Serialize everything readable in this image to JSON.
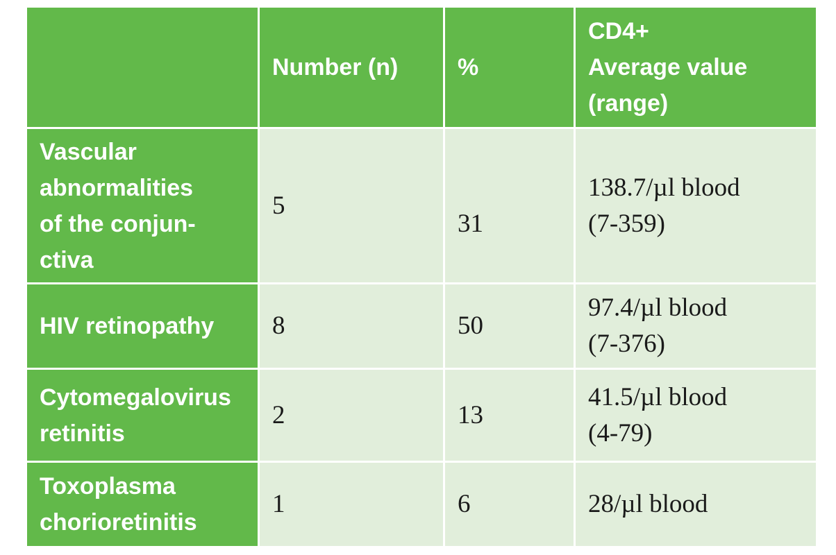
{
  "table": {
    "headers": [
      "",
      "Number (n)",
      "%",
      [
        "CD4+",
        "Average value",
        "(range)"
      ]
    ],
    "rows": [
      {
        "label": [
          "Vascular",
          "abnormalities",
          "of the conjun-",
          "ctiva"
        ],
        "number": "5",
        "percent": "31",
        "cd4": [
          "138.7/µl blood",
          "(7-359)"
        ]
      },
      {
        "label": [
          "HIV retinopathy"
        ],
        "number": "8",
        "percent": "50",
        "cd4": [
          "97.4/µl blood",
          "(7-376)"
        ]
      },
      {
        "label": [
          "Cytomegalovirus",
          "retinitis"
        ],
        "number": "2",
        "percent": "13",
        "cd4": [
          "41.5/µl blood",
          "(4-79)"
        ]
      },
      {
        "label": [
          "Toxoplasma",
          "chorioretinitis"
        ],
        "number": "1",
        "percent": "6",
        "cd4": [
          "28/µl blood"
        ]
      }
    ]
  },
  "colors": {
    "header_green": "#62b94a",
    "cell_light_green": "#e1eedb",
    "text_white": "#ffffff",
    "text_dark": "#1a1a1a"
  }
}
